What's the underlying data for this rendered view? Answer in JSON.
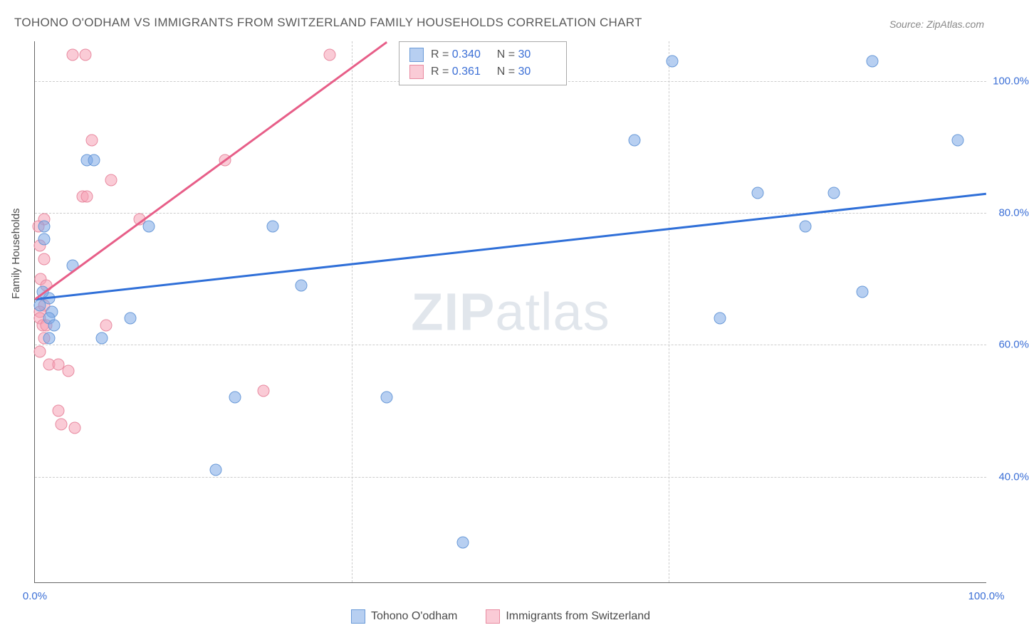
{
  "title": "TOHONO O'ODHAM VS IMMIGRANTS FROM SWITZERLAND FAMILY HOUSEHOLDS CORRELATION CHART",
  "source": "Source: ZipAtlas.com",
  "ylabel": "Family Households",
  "watermark_bold": "ZIP",
  "watermark_rest": "atlas",
  "chart": {
    "type": "scatter",
    "xlim": [
      0,
      100
    ],
    "ylim": [
      24,
      106
    ],
    "x_ticks": [
      {
        "val": 0,
        "label": "0.0%"
      },
      {
        "val": 100,
        "label": "100.0%"
      }
    ],
    "x_minor_ticks": [
      33.3,
      66.6
    ],
    "y_ticks": [
      {
        "val": 40,
        "label": "40.0%"
      },
      {
        "val": 60,
        "label": "60.0%"
      },
      {
        "val": 80,
        "label": "80.0%"
      },
      {
        "val": 100,
        "label": "100.0%"
      }
    ],
    "grid_color": "#cccccc",
    "background_color": "#ffffff",
    "series": [
      {
        "name": "Tohono O'odham",
        "R": "0.340",
        "N": "30",
        "marker_fill": "rgba(123,167,230,0.55)",
        "marker_stroke": "#6a9ad8",
        "marker_radius": 8.5,
        "trend_color": "#2f6fd8",
        "trend": {
          "x1": 0,
          "y1": 67,
          "x2": 100,
          "y2": 83
        },
        "points": [
          [
            67,
            103
          ],
          [
            88,
            103
          ],
          [
            63,
            91
          ],
          [
            5.5,
            88
          ],
          [
            6.2,
            88
          ],
          [
            76,
            83
          ],
          [
            84,
            83
          ],
          [
            1,
            78
          ],
          [
            12,
            78
          ],
          [
            25,
            78
          ],
          [
            81,
            78
          ],
          [
            4,
            72
          ],
          [
            87,
            68
          ],
          [
            28,
            69
          ],
          [
            1.5,
            67
          ],
          [
            0.5,
            66
          ],
          [
            1.8,
            65
          ],
          [
            72,
            64
          ],
          [
            1.5,
            64
          ],
          [
            2,
            63
          ],
          [
            10,
            64
          ],
          [
            7,
            61
          ],
          [
            1.5,
            61
          ],
          [
            21,
            52
          ],
          [
            37,
            52
          ],
          [
            19,
            41
          ],
          [
            45,
            30
          ],
          [
            97,
            91
          ],
          [
            1.0,
            76
          ],
          [
            0.8,
            68
          ]
        ]
      },
      {
        "name": "Immigrants from Switzerland",
        "R": "0.361",
        "N": "30",
        "marker_fill": "rgba(245,160,180,0.55)",
        "marker_stroke": "#e88aa0",
        "marker_radius": 8.5,
        "trend_color": "#e75e88",
        "trend": {
          "x1": 0,
          "y1": 67,
          "x2": 37,
          "y2": 106
        },
        "points": [
          [
            4,
            104
          ],
          [
            5.3,
            104
          ],
          [
            31,
            104
          ],
          [
            6,
            91
          ],
          [
            20,
            88
          ],
          [
            8,
            85
          ],
          [
            5,
            82.5
          ],
          [
            5.5,
            82.5
          ],
          [
            1,
            79
          ],
          [
            11,
            79
          ],
          [
            0.5,
            75
          ],
          [
            1,
            73
          ],
          [
            1,
            66
          ],
          [
            0.5,
            65
          ],
          [
            0.5,
            64
          ],
          [
            0.8,
            63
          ],
          [
            1.2,
            63
          ],
          [
            7.5,
            63
          ],
          [
            1,
            61
          ],
          [
            0.5,
            59
          ],
          [
            1.5,
            57
          ],
          [
            2.5,
            57
          ],
          [
            3.5,
            56
          ],
          [
            24,
            53
          ],
          [
            2.5,
            50
          ],
          [
            4.2,
            47.4
          ],
          [
            2.8,
            48
          ],
          [
            0.4,
            78
          ],
          [
            0.6,
            70
          ],
          [
            1.2,
            69
          ]
        ]
      }
    ]
  },
  "legend_bottom": [
    {
      "label": "Tohono O'odham",
      "fill": "rgba(123,167,230,0.55)",
      "stroke": "#6a9ad8"
    },
    {
      "label": "Immigrants from Switzerland",
      "fill": "rgba(245,160,180,0.55)",
      "stroke": "#e88aa0"
    }
  ]
}
